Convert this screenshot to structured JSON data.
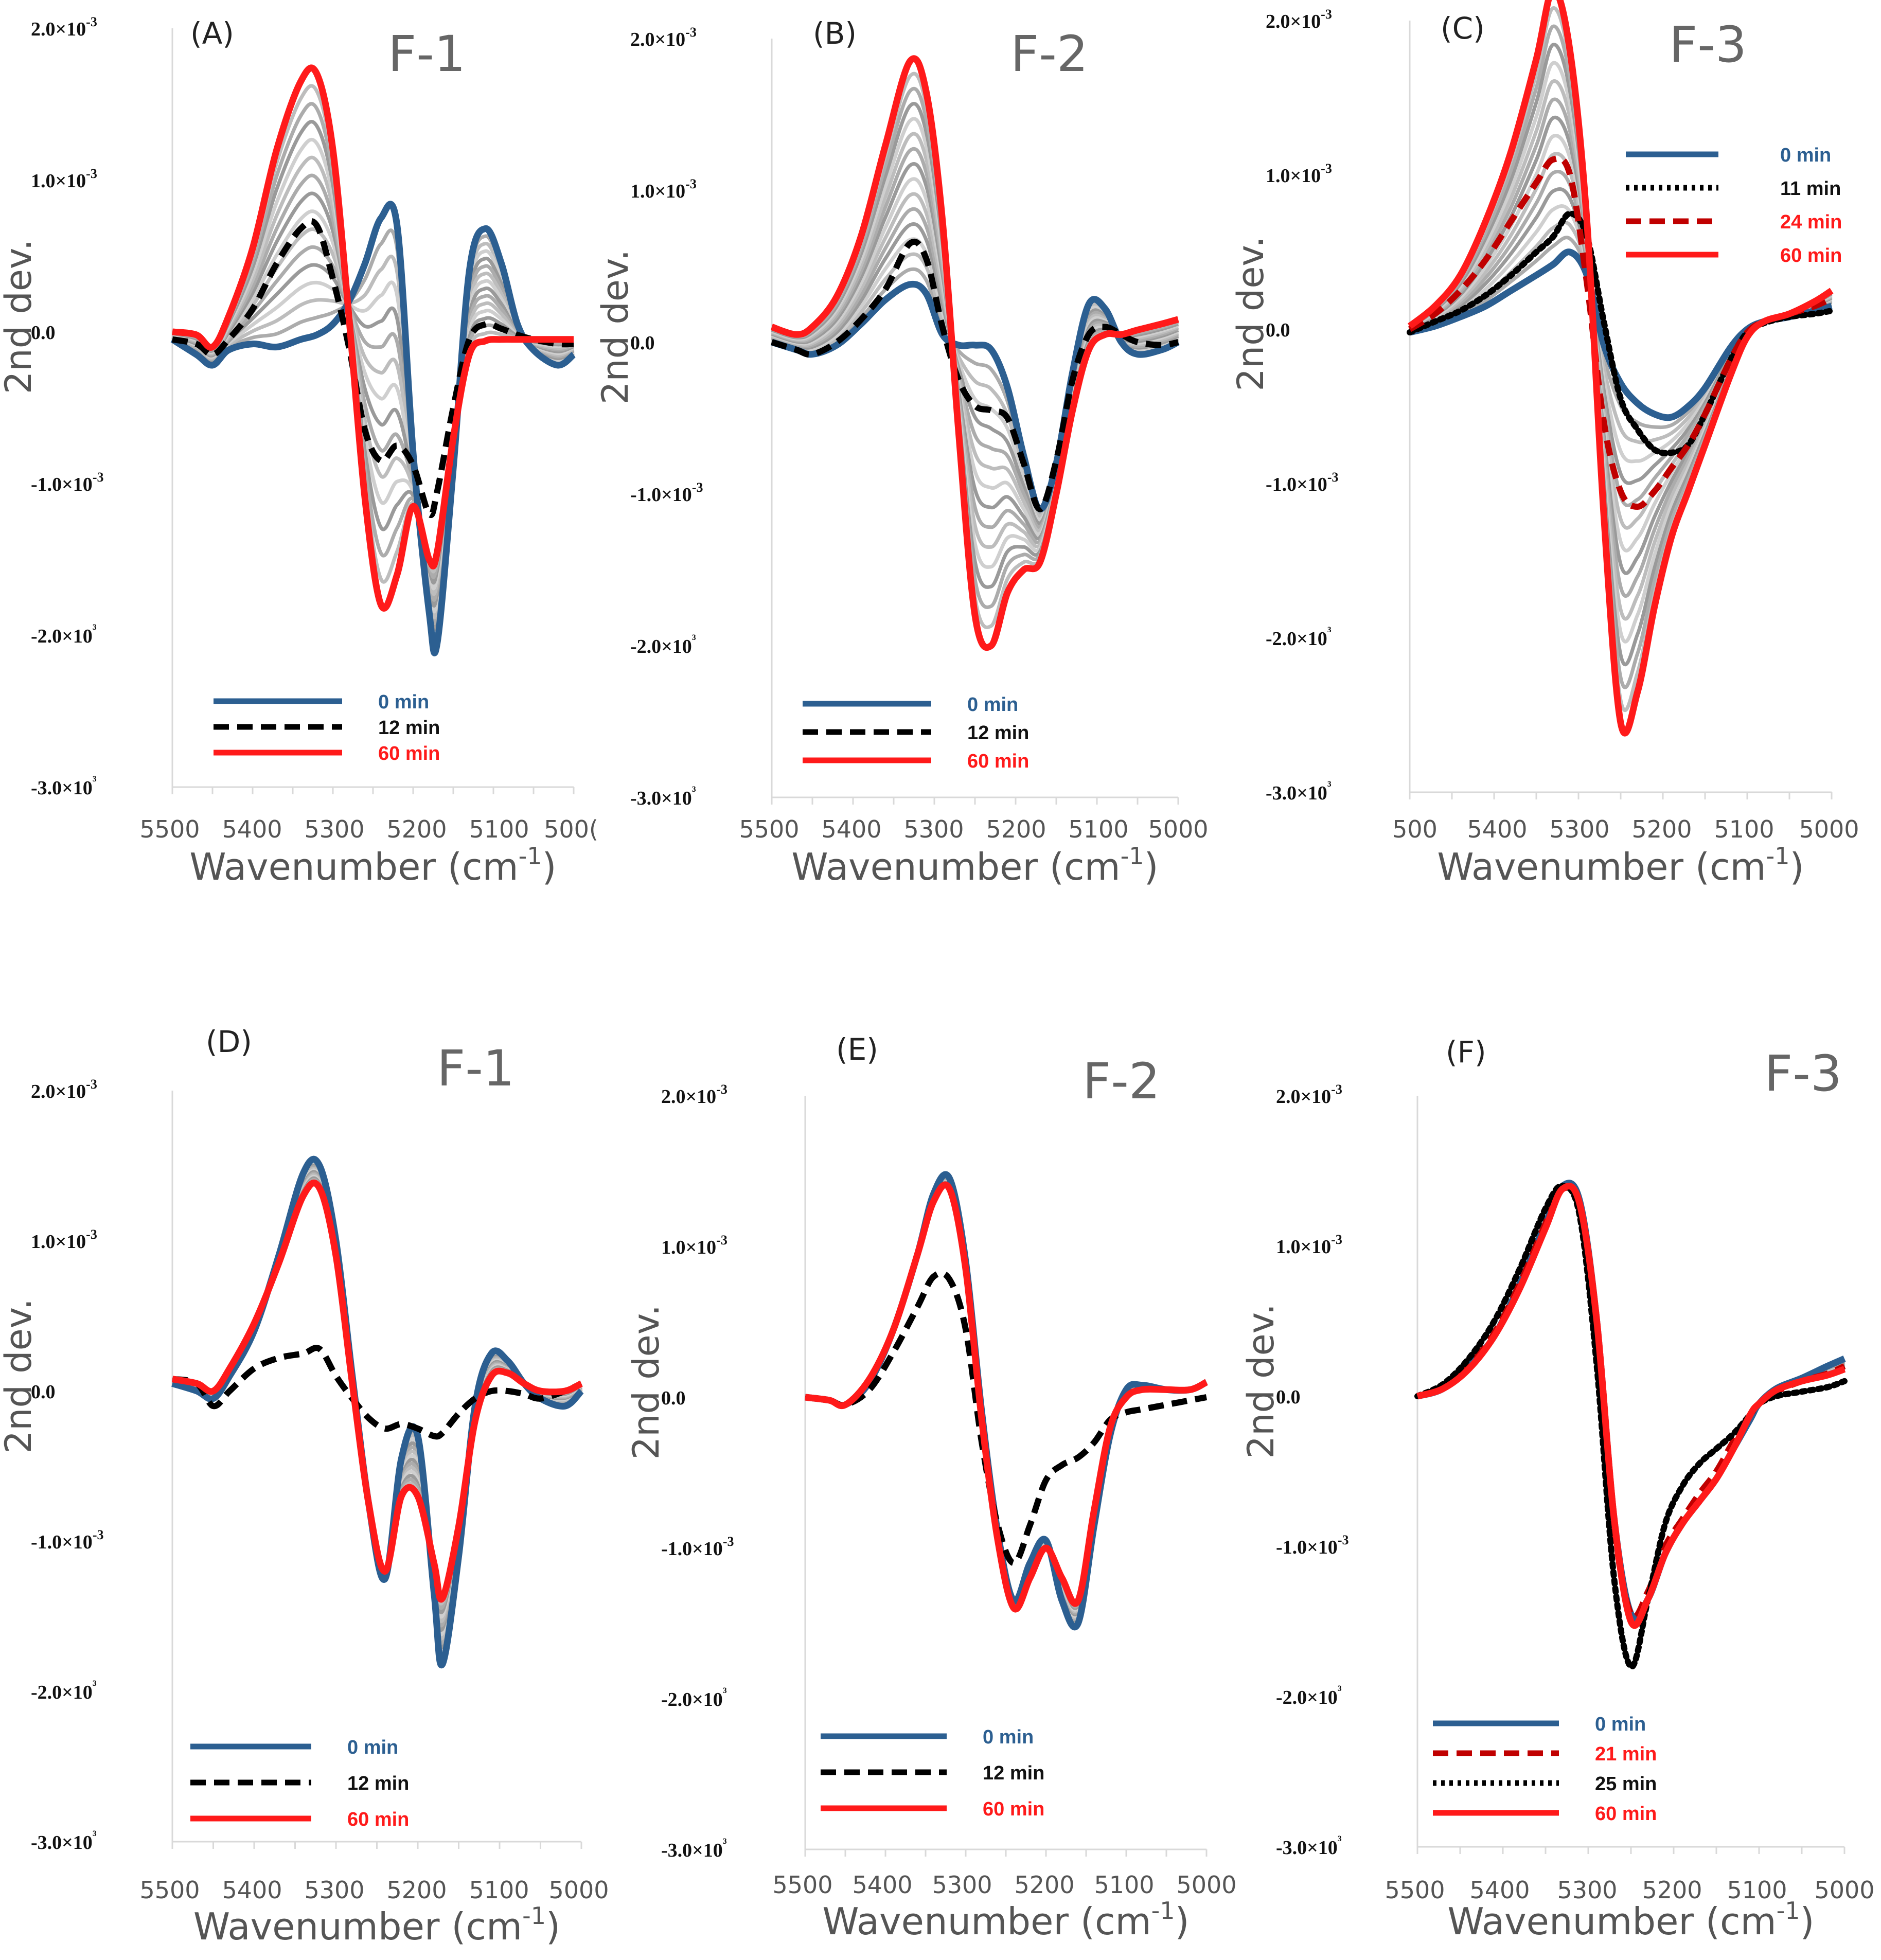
{
  "chart_data": [
    {
      "type": "line",
      "panel_label": "(A)",
      "title": "F-1",
      "xlabel": "Wavenumber (cm",
      "xlabel_sup": "-1",
      "xlabel_end": ")",
      "ylabel": "2nd dev.",
      "xlim": [
        5500,
        5000
      ],
      "ylim": [
        -3.0,
        2.0
      ],
      "x_tick_labels": [
        "5500",
        "5400",
        "5300",
        "5200",
        "5100",
        "500("
      ],
      "y_tick_labels": [
        "2.0×10-3",
        "1.0×10-3",
        "0.0",
        "-1.0×10-3",
        "-2.0×10³",
        "-3.0×10³"
      ],
      "x": [
        5500,
        5470,
        5450,
        5430,
        5400,
        5370,
        5340,
        5320,
        5300,
        5280,
        5260,
        5240,
        5220,
        5200,
        5180,
        5170,
        5150,
        5130,
        5110,
        5090,
        5070,
        5050,
        5020,
        5000
      ],
      "series": [
        {
          "name": "0 min",
          "color": "#2c5f91",
          "style": "solid",
          "values": [
            -0.05,
            -0.15,
            -0.22,
            -0.12,
            -0.08,
            -0.1,
            -0.05,
            -0.02,
            0.05,
            0.2,
            0.45,
            0.75,
            0.7,
            -0.8,
            -1.85,
            -2.05,
            -0.9,
            0.4,
            0.68,
            0.45,
            0.05,
            -0.12,
            -0.22,
            -0.15
          ]
        },
        {
          "name": "12 min",
          "color": "#000000",
          "style": "dashed",
          "values": [
            -0.05,
            -0.08,
            -0.15,
            -0.05,
            0.15,
            0.45,
            0.68,
            0.7,
            0.35,
            -0.1,
            -0.65,
            -0.85,
            -0.75,
            -0.88,
            -1.2,
            -1.05,
            -0.5,
            -0.05,
            0.05,
            0.02,
            -0.02,
            -0.05,
            -0.08,
            -0.08
          ]
        },
        {
          "name": "60 min",
          "color": "#ff1a1a",
          "style": "solid",
          "values": [
            0.0,
            -0.02,
            -0.1,
            0.1,
            0.55,
            1.2,
            1.65,
            1.7,
            1.2,
            0.1,
            -1.1,
            -1.8,
            -1.6,
            -1.15,
            -1.5,
            -1.45,
            -0.7,
            -0.15,
            -0.06,
            -0.05,
            -0.05,
            -0.05,
            -0.05,
            -0.05
          ]
        }
      ],
      "legend": [
        {
          "label": "0 min",
          "color": "#2c5f91",
          "style": "solid",
          "text_color": "#2c5f91"
        },
        {
          "label": "12 min",
          "color": "#000000",
          "style": "dashed",
          "text_color": "#111111"
        },
        {
          "label": "60 min",
          "color": "#ff1a1a",
          "style": "solid",
          "text_color": "#ff1a1a"
        }
      ]
    },
    {
      "type": "line",
      "panel_label": "(B)",
      "title": "F-2",
      "xlabel": "Wavenumber (cm",
      "xlabel_sup": "-1",
      "xlabel_end": ")",
      "ylabel": "2nd dev.",
      "xlim": [
        5500,
        5000
      ],
      "ylim": [
        -3.0,
        2.0
      ],
      "x_tick_labels": [
        "5500",
        "5400",
        "5300",
        "5200",
        "5100",
        "5000"
      ],
      "y_tick_labels": [
        "2.0×10-3",
        "1.0×10-3",
        "0.0",
        "-1.0×10-3",
        "-2.0×10³",
        "-3.0×10³"
      ],
      "x": [
        5500,
        5470,
        5450,
        5420,
        5390,
        5360,
        5330,
        5310,
        5290,
        5270,
        5250,
        5230,
        5210,
        5190,
        5170,
        5150,
        5130,
        5110,
        5090,
        5070,
        5050,
        5020,
        5000
      ],
      "series": [
        {
          "name": "0 min",
          "color": "#2c5f91",
          "style": "solid",
          "values": [
            0.0,
            -0.05,
            -0.08,
            -0.02,
            0.12,
            0.28,
            0.38,
            0.32,
            0.05,
            -0.02,
            -0.02,
            -0.05,
            -0.3,
            -0.75,
            -1.1,
            -0.8,
            -0.2,
            0.25,
            0.22,
            0.0,
            -0.08,
            -0.05,
            0.0
          ]
        },
        {
          "name": "12 min",
          "color": "#000000",
          "style": "dashed",
          "values": [
            0.0,
            -0.05,
            -0.08,
            0.0,
            0.15,
            0.35,
            0.65,
            0.55,
            0.1,
            -0.25,
            -0.42,
            -0.45,
            -0.5,
            -0.8,
            -1.1,
            -0.78,
            -0.25,
            0.05,
            0.1,
            0.05,
            0.0,
            -0.02,
            0.0
          ]
        },
        {
          "name": "60 min",
          "color": "#ff1a1a",
          "style": "solid",
          "values": [
            0.1,
            0.05,
            0.1,
            0.3,
            0.7,
            1.3,
            1.85,
            1.65,
            0.8,
            -0.6,
            -1.8,
            -2.0,
            -1.65,
            -1.5,
            -1.45,
            -1.0,
            -0.45,
            -0.05,
            0.05,
            0.05,
            0.08,
            0.12,
            0.15
          ]
        }
      ],
      "legend": [
        {
          "label": "0 min",
          "color": "#2c5f91",
          "style": "solid",
          "text_color": "#2c5f91"
        },
        {
          "label": "12 min",
          "color": "#000000",
          "style": "dashed",
          "text_color": "#111111"
        },
        {
          "label": "60 min",
          "color": "#ff1a1a",
          "style": "solid",
          "text_color": "#ff1a1a"
        }
      ]
    },
    {
      "type": "line",
      "panel_label": "(C)",
      "title": "F-3",
      "xlabel": "Wavenumber (cm",
      "xlabel_sup": "-1",
      "xlabel_end": ")",
      "ylabel": "2nd dev.",
      "xlim": [
        5500,
        5000
      ],
      "ylim": [
        -3.0,
        2.0
      ],
      "x_tick_labels": [
        "500",
        "5400",
        "5300",
        "5200",
        "5100",
        "5000"
      ],
      "y_tick_labels": [
        "2.0×10-3",
        "1.0×10-3",
        "0.0",
        "-1.0×10-3",
        "-2.0×10³",
        "-3.0×10³"
      ],
      "x": [
        5500,
        5470,
        5440,
        5410,
        5380,
        5350,
        5330,
        5310,
        5290,
        5270,
        5250,
        5230,
        5210,
        5190,
        5170,
        5150,
        5120,
        5100,
        5080,
        5050,
        5020,
        5000
      ],
      "series": [
        {
          "name": "0 min",
          "color": "#2c5f91",
          "style": "solid",
          "values": [
            -0.02,
            0.02,
            0.08,
            0.15,
            0.25,
            0.35,
            0.42,
            0.5,
            0.35,
            -0.1,
            -0.35,
            -0.48,
            -0.55,
            -0.57,
            -0.5,
            -0.38,
            -0.12,
            0.0,
            0.05,
            0.08,
            0.12,
            0.15
          ]
        },
        {
          "name": "11 min",
          "color": "#000000",
          "style": "dotted",
          "values": [
            -0.02,
            0.05,
            0.12,
            0.22,
            0.35,
            0.5,
            0.6,
            0.75,
            0.6,
            0.05,
            -0.45,
            -0.65,
            -0.78,
            -0.8,
            -0.75,
            -0.55,
            -0.2,
            -0.02,
            0.04,
            0.08,
            0.1,
            0.12
          ]
        },
        {
          "name": "24 min",
          "color": "#c00000",
          "style": "dashed",
          "values": [
            0.0,
            0.1,
            0.25,
            0.45,
            0.7,
            0.95,
            1.1,
            1.0,
            0.3,
            -0.6,
            -1.05,
            -1.15,
            -1.05,
            -0.9,
            -0.75,
            -0.55,
            -0.2,
            -0.02,
            0.05,
            0.1,
            0.15,
            0.2
          ]
        },
        {
          "name": "60 min",
          "color": "#ff1a1a",
          "style": "solid",
          "values": [
            0.02,
            0.15,
            0.35,
            0.7,
            1.15,
            1.75,
            2.2,
            1.8,
            0.7,
            -1.2,
            -2.55,
            -2.35,
            -1.8,
            -1.35,
            -1.05,
            -0.75,
            -0.3,
            -0.05,
            0.05,
            0.1,
            0.18,
            0.25
          ]
        }
      ],
      "legend": [
        {
          "label": "0 min",
          "color": "#2c5f91",
          "style": "solid",
          "text_color": "#2c5f91"
        },
        {
          "label": "11 min",
          "color": "#000000",
          "style": "dotted",
          "text_color": "#111111"
        },
        {
          "label": "24 min",
          "color": "#c00000",
          "style": "dashed",
          "text_color": "#ff1a1a"
        },
        {
          "label": "60 min",
          "color": "#ff1a1a",
          "style": "solid",
          "text_color": "#ff1a1a"
        }
      ]
    },
    {
      "type": "line",
      "panel_label": "(D)",
      "title": "F-1",
      "xlabel": "Wavenumber (cm",
      "xlabel_sup": "-1",
      "xlabel_end": ")",
      "ylabel": "2nd dev.",
      "xlim": [
        5500,
        5000
      ],
      "ylim": [
        -3.0,
        2.0
      ],
      "x_tick_labels": [
        "5500",
        "5400",
        "5300",
        "5200",
        "5100",
        "5000"
      ],
      "y_tick_labels": [
        "2.0×10-3",
        "1.0×10-3",
        "0.0",
        "-1.0×10-3",
        "-2.0×10³",
        "-3.0×10³"
      ],
      "x": [
        5500,
        5470,
        5450,
        5430,
        5400,
        5370,
        5340,
        5320,
        5300,
        5280,
        5260,
        5240,
        5220,
        5200,
        5180,
        5170,
        5150,
        5130,
        5110,
        5090,
        5070,
        5050,
        5020,
        5000
      ],
      "series": [
        {
          "name": "0 min",
          "color": "#2c5f91",
          "style": "solid",
          "values": [
            0.05,
            0.0,
            -0.05,
            0.1,
            0.4,
            0.9,
            1.45,
            1.5,
            1.0,
            0.1,
            -0.75,
            -1.25,
            -0.45,
            -0.3,
            -1.35,
            -1.82,
            -1.1,
            -0.1,
            0.25,
            0.2,
            0.05,
            -0.05,
            -0.1,
            0.0
          ]
        },
        {
          "name": "12 min",
          "color": "#000000",
          "style": "dashed",
          "values": [
            0.08,
            0.05,
            -0.1,
            0.0,
            0.15,
            0.22,
            0.25,
            0.28,
            0.1,
            -0.05,
            -0.18,
            -0.25,
            -0.22,
            -0.25,
            -0.3,
            -0.28,
            -0.15,
            -0.05,
            0.0,
            0.0,
            -0.02,
            -0.05,
            0.0,
            0.05
          ]
        },
        {
          "name": "60 min",
          "color": "#ff1a1a",
          "style": "solid",
          "values": [
            0.08,
            0.05,
            0.0,
            0.15,
            0.45,
            0.85,
            1.3,
            1.35,
            0.9,
            0.05,
            -0.75,
            -1.2,
            -0.7,
            -0.7,
            -1.15,
            -1.38,
            -0.9,
            -0.2,
            0.1,
            0.12,
            0.05,
            0.0,
            0.0,
            0.05
          ]
        }
      ],
      "legend": [
        {
          "label": "0 min",
          "color": "#2c5f91",
          "style": "solid",
          "text_color": "#2c5f91"
        },
        {
          "label": "12 min",
          "color": "#000000",
          "style": "dashed",
          "text_color": "#111111"
        },
        {
          "label": "60 min",
          "color": "#ff1a1a",
          "style": "solid",
          "text_color": "#ff1a1a"
        }
      ]
    },
    {
      "type": "line",
      "panel_label": "(E)",
      "title": "F-2",
      "xlabel": "Wavenumber (cm",
      "xlabel_sup": "-1",
      "xlabel_end": ")",
      "ylabel": "2nd dev.",
      "xlim": [
        5500,
        5000
      ],
      "ylim": [
        -3.0,
        2.0
      ],
      "x_tick_labels": [
        "5500",
        "5400",
        "5300",
        "5200",
        "5100",
        "5000"
      ],
      "y_tick_labels": [
        "2.0×10-3",
        "1.0×10-3",
        "0.0",
        "-1.0×10-3",
        "-2.0×10³",
        "-3.0×10³"
      ],
      "x": [
        5500,
        5470,
        5450,
        5420,
        5390,
        5360,
        5340,
        5320,
        5300,
        5280,
        5260,
        5240,
        5220,
        5200,
        5180,
        5160,
        5140,
        5120,
        5100,
        5080,
        5050,
        5020,
        5000
      ],
      "series": [
        {
          "name": "0 min",
          "color": "#2c5f91",
          "style": "solid",
          "values": [
            0.0,
            -0.02,
            -0.05,
            0.1,
            0.45,
            0.95,
            1.35,
            1.45,
            0.9,
            -0.1,
            -0.9,
            -1.35,
            -1.1,
            -0.95,
            -1.35,
            -1.5,
            -0.85,
            -0.25,
            0.05,
            0.08,
            0.05,
            0.05,
            0.1
          ]
        },
        {
          "name": "12 min",
          "color": "#000000",
          "style": "dashed",
          "values": [
            0.0,
            -0.02,
            -0.05,
            0.05,
            0.3,
            0.6,
            0.8,
            0.78,
            0.45,
            -0.3,
            -0.85,
            -1.1,
            -0.85,
            -0.55,
            -0.45,
            -0.4,
            -0.3,
            -0.15,
            -0.1,
            -0.08,
            -0.05,
            -0.02,
            0.0
          ]
        },
        {
          "name": "60 min",
          "color": "#ff1a1a",
          "style": "solid",
          "values": [
            0.0,
            -0.02,
            -0.05,
            0.12,
            0.45,
            0.95,
            1.3,
            1.38,
            0.85,
            -0.15,
            -0.95,
            -1.4,
            -1.2,
            -1.0,
            -1.2,
            -1.35,
            -0.75,
            -0.2,
            0.0,
            0.05,
            0.05,
            0.05,
            0.1
          ]
        }
      ],
      "legend": [
        {
          "label": "0 min",
          "color": "#2c5f91",
          "style": "solid",
          "text_color": "#2c5f91"
        },
        {
          "label": "12 min",
          "color": "#000000",
          "style": "dashed",
          "text_color": "#111111"
        },
        {
          "label": "60 min",
          "color": "#ff1a1a",
          "style": "solid",
          "text_color": "#ff1a1a"
        }
      ]
    },
    {
      "type": "line",
      "panel_label": "(F)",
      "title": "F-3",
      "xlabel": "Wavenumber (cm",
      "xlabel_sup": "-1",
      "xlabel_end": ")",
      "ylabel": "2nd dev.",
      "xlim": [
        5500,
        5000
      ],
      "ylim": [
        -3.0,
        2.0
      ],
      "x_tick_labels": [
        "5500",
        "5400",
        "5300",
        "5200",
        "5100",
        "5000"
      ],
      "y_tick_labels": [
        "2.0×10-3",
        "1.0×10-3",
        "0.0",
        "-1.0×10-3",
        "-2.0×10³",
        "-3.0×10³"
      ],
      "x": [
        5500,
        5470,
        5440,
        5410,
        5380,
        5350,
        5330,
        5310,
        5290,
        5270,
        5250,
        5230,
        5210,
        5190,
        5170,
        5150,
        5130,
        5110,
        5100,
        5080,
        5050,
        5020,
        5000
      ],
      "series": [
        {
          "name": "0 min",
          "color": "#2c5f91",
          "style": "solid",
          "values": [
            0.0,
            0.05,
            0.2,
            0.4,
            0.75,
            1.15,
            1.4,
            1.3,
            0.5,
            -0.8,
            -1.45,
            -1.35,
            -1.05,
            -0.85,
            -0.7,
            -0.55,
            -0.35,
            -0.15,
            -0.05,
            0.05,
            0.12,
            0.2,
            0.25
          ]
        },
        {
          "name": "21 min",
          "color": "#c00000",
          "style": "dashed",
          "values": [
            0.0,
            0.05,
            0.2,
            0.42,
            0.75,
            1.15,
            1.38,
            1.25,
            0.45,
            -0.85,
            -1.45,
            -1.3,
            -1.0,
            -0.82,
            -0.65,
            -0.5,
            -0.3,
            -0.12,
            -0.05,
            0.03,
            0.1,
            0.15,
            0.2
          ]
        },
        {
          "name": "25 min",
          "color": "#000000",
          "style": "dotted",
          "values": [
            0.0,
            0.08,
            0.25,
            0.5,
            0.85,
            1.25,
            1.4,
            1.2,
            0.2,
            -1.2,
            -1.8,
            -1.35,
            -0.85,
            -0.6,
            -0.45,
            -0.35,
            -0.25,
            -0.12,
            -0.05,
            0.0,
            0.03,
            0.06,
            0.1
          ]
        },
        {
          "name": "60 min",
          "color": "#ff1a1a",
          "style": "solid",
          "values": [
            0.0,
            0.05,
            0.18,
            0.4,
            0.72,
            1.12,
            1.38,
            1.28,
            0.5,
            -0.8,
            -1.5,
            -1.35,
            -1.05,
            -0.85,
            -0.7,
            -0.55,
            -0.35,
            -0.12,
            -0.05,
            0.04,
            0.1,
            0.14,
            0.18
          ]
        }
      ],
      "legend": [
        {
          "label": "0 min",
          "color": "#2c5f91",
          "style": "solid",
          "text_color": "#2c5f91"
        },
        {
          "label": "21 min",
          "color": "#c00000",
          "style": "dashed",
          "text_color": "#ff1a1a"
        },
        {
          "label": "25 min",
          "color": "#000000",
          "style": "dotted",
          "text_color": "#111111"
        },
        {
          "label": "60 min",
          "color": "#ff1a1a",
          "style": "solid",
          "text_color": "#ff1a1a"
        }
      ]
    }
  ]
}
